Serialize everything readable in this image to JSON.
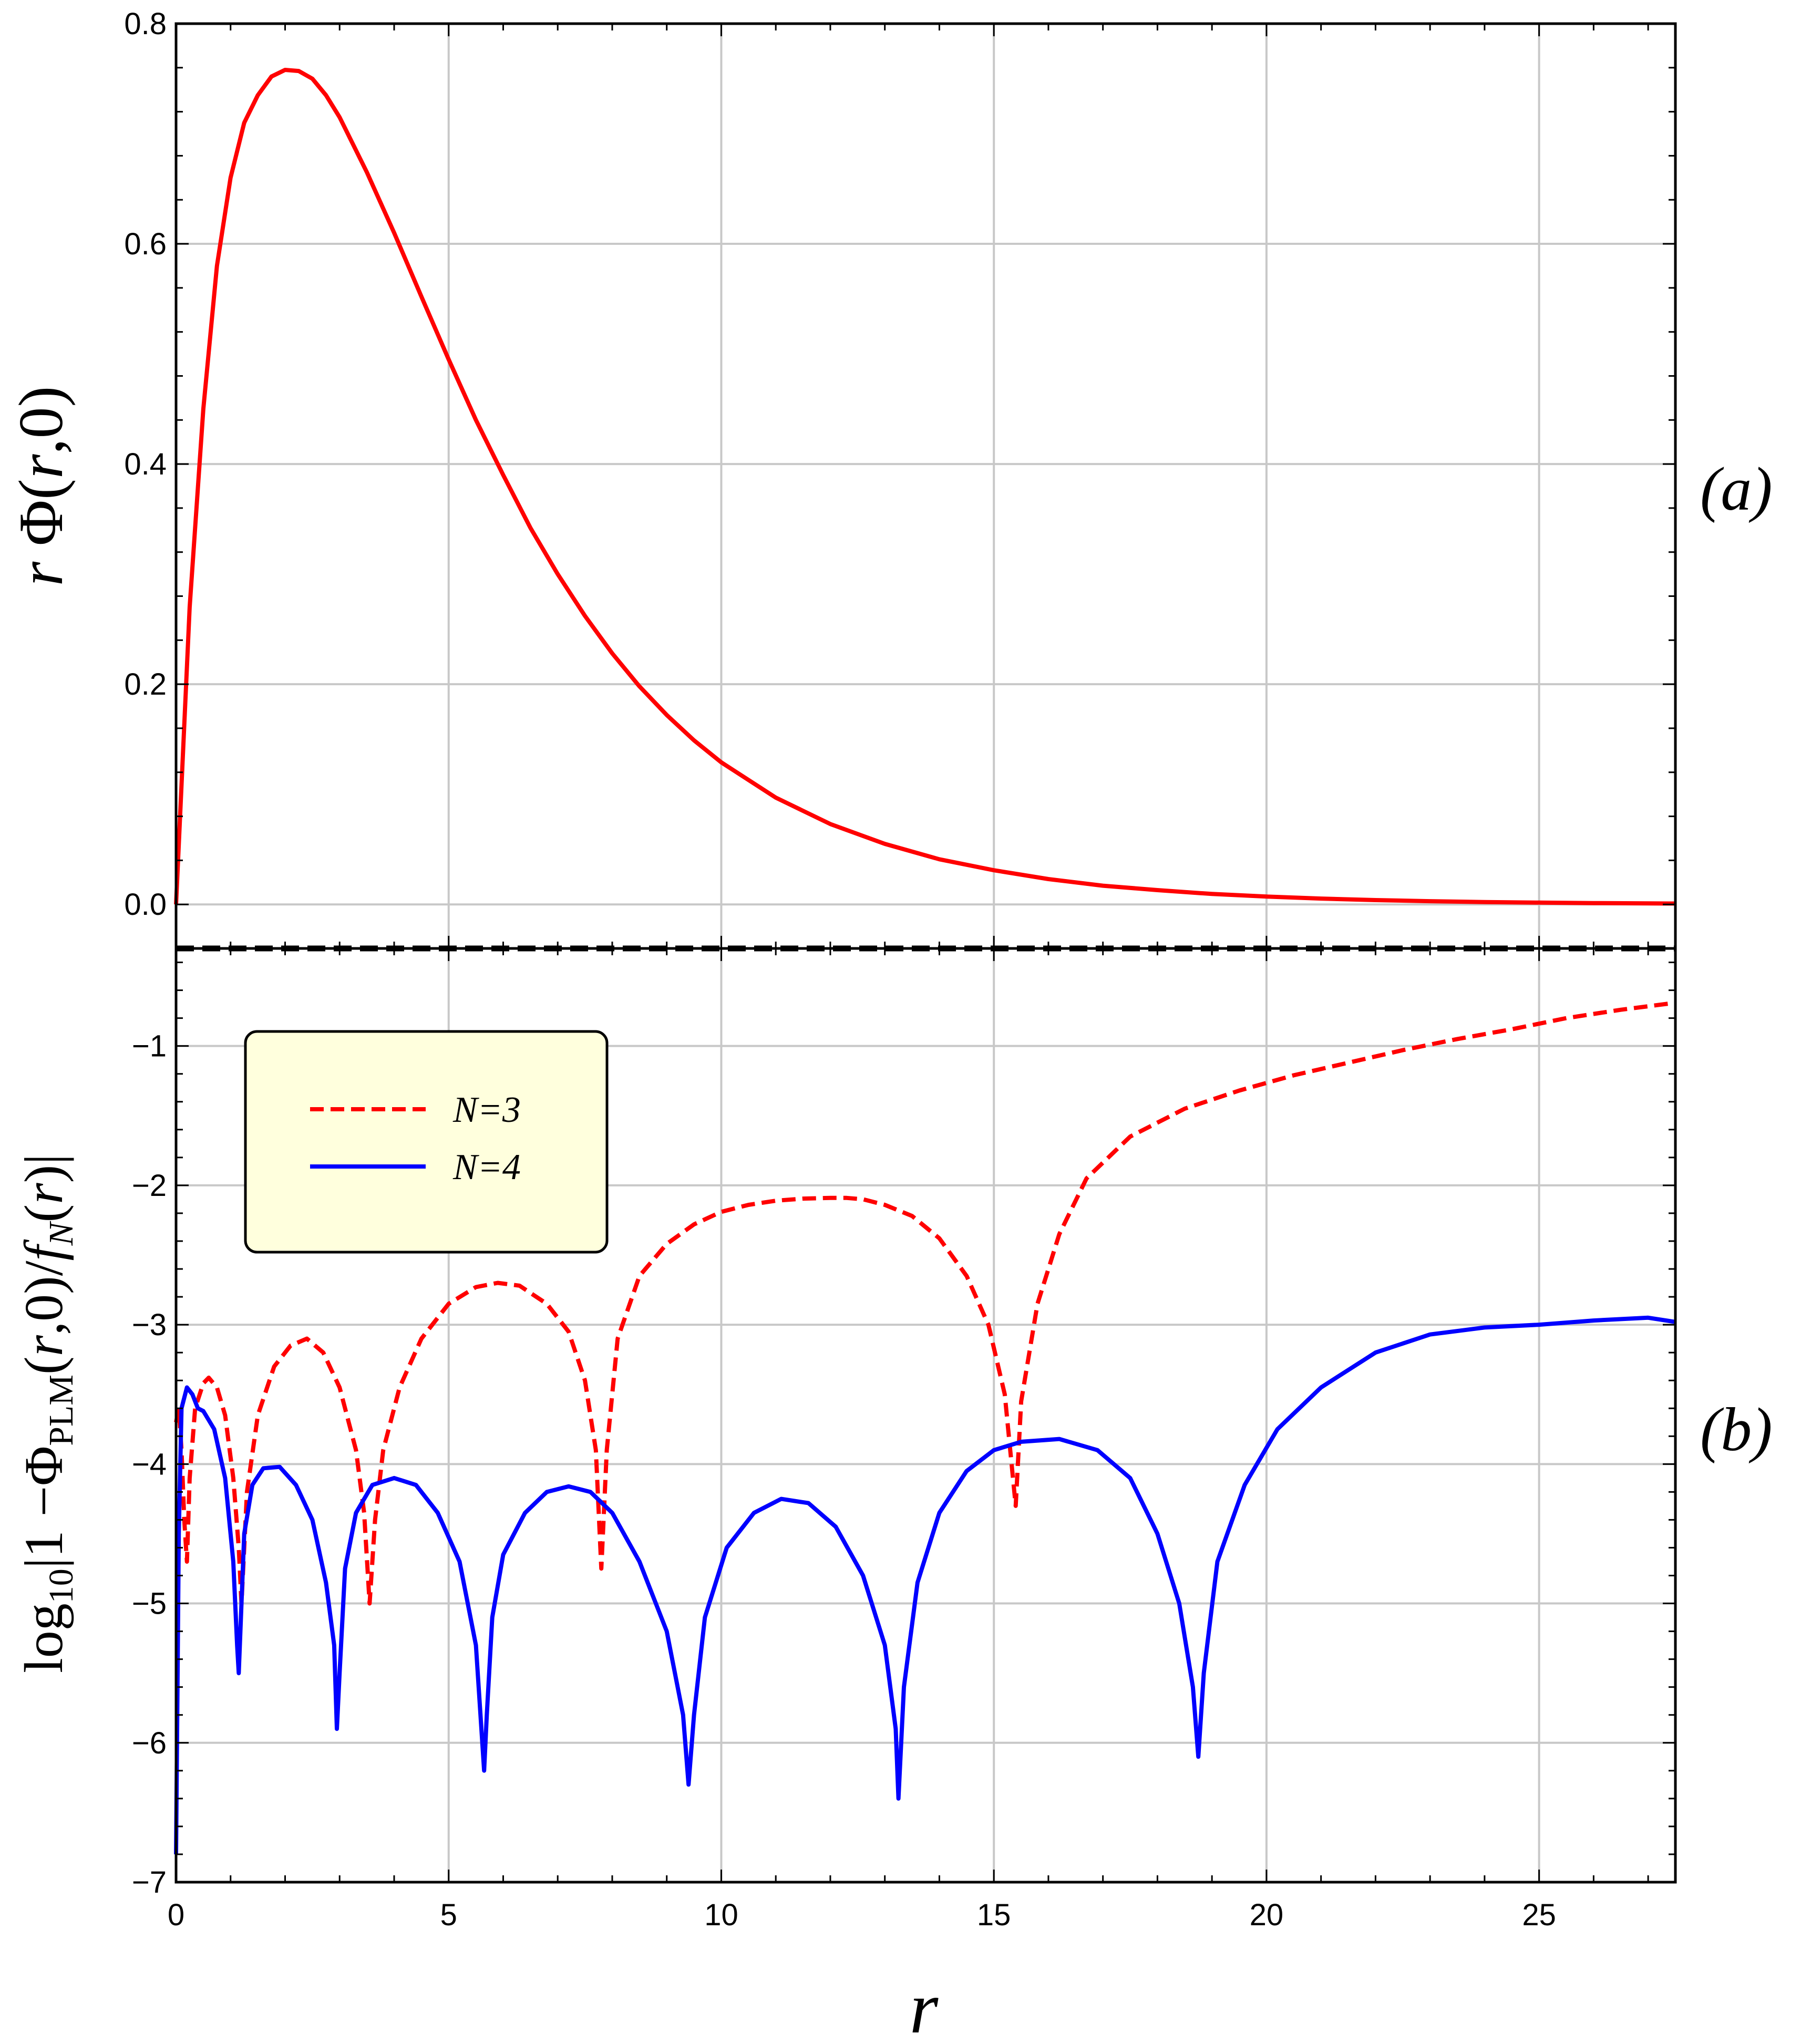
{
  "chart_data": [
    {
      "panel": "(a)",
      "type": "line",
      "ylabel": "r Φ(r,0)",
      "xlim": [
        0,
        27.5
      ],
      "ylim": [
        -0.04,
        0.8
      ],
      "y_ticks": [
        0.0,
        0.2,
        0.4,
        0.6,
        0.8
      ],
      "y_tick_labels": [
        "0.0",
        "0.2",
        "0.4",
        "0.6",
        "0.8"
      ],
      "grid": true,
      "series": [
        {
          "name": "r Φ(r,0)",
          "color": "#ff0000",
          "x": [
            0,
            0.25,
            0.5,
            0.75,
            1.0,
            1.25,
            1.5,
            1.75,
            2.0,
            2.25,
            2.5,
            2.75,
            3.0,
            3.5,
            4.0,
            4.5,
            5.0,
            5.5,
            6.0,
            6.5,
            7.0,
            7.5,
            8.0,
            8.5,
            9.0,
            9.5,
            10.0,
            11.0,
            12.0,
            13.0,
            14.0,
            15.0,
            16.0,
            17.0,
            18.0,
            19.0,
            20.0,
            21.0,
            22.0,
            23.0,
            24.0,
            25.0,
            26.0,
            27.0,
            27.5
          ],
          "values": [
            0.0,
            0.27,
            0.45,
            0.58,
            0.66,
            0.71,
            0.735,
            0.752,
            0.758,
            0.757,
            0.75,
            0.735,
            0.715,
            0.665,
            0.61,
            0.552,
            0.495,
            0.44,
            0.39,
            0.342,
            0.3,
            0.262,
            0.228,
            0.198,
            0.172,
            0.149,
            0.129,
            0.097,
            0.073,
            0.055,
            0.041,
            0.031,
            0.023,
            0.017,
            0.013,
            0.0095,
            0.0071,
            0.0053,
            0.0039,
            0.0029,
            0.0021,
            0.0016,
            0.0012,
            0.0009,
            0.0008
          ]
        }
      ]
    },
    {
      "panel": "(b)",
      "type": "line",
      "xlabel": "r",
      "ylabel": "log₁₀|1−Φ_PLM(r,0)/f_N(r)|",
      "xlim": [
        0,
        27.5
      ],
      "ylim": [
        -7,
        -0.3
      ],
      "x_ticks": [
        0,
        5,
        10,
        15,
        20,
        25
      ],
      "x_tick_labels": [
        "0",
        "5",
        "10",
        "15",
        "20",
        "25"
      ],
      "y_ticks": [
        -7,
        -6,
        -5,
        -4,
        -3,
        -2,
        -1
      ],
      "y_tick_labels": [
        "−7",
        "−6",
        "−5",
        "−4",
        "−3",
        "−2",
        "−1"
      ],
      "grid": true,
      "legend": {
        "placement": "top-left",
        "entries": [
          {
            "label": "N=3",
            "style": "dashed",
            "color": "#ff0000"
          },
          {
            "label": "N=4",
            "style": "solid",
            "color": "#0000ff"
          }
        ]
      },
      "series": [
        {
          "name": "N=3",
          "color": "#ff0000",
          "dash": "dashed",
          "x": [
            0.0,
            0.05,
            0.1,
            0.15,
            0.2,
            0.25,
            0.35,
            0.5,
            0.6,
            0.75,
            0.9,
            1.05,
            1.15,
            1.2,
            1.3,
            1.5,
            1.8,
            2.1,
            2.4,
            2.7,
            3.0,
            3.3,
            3.45,
            3.55,
            3.65,
            3.8,
            4.1,
            4.5,
            5.0,
            5.5,
            5.9,
            6.3,
            6.8,
            7.2,
            7.5,
            7.7,
            7.8,
            7.9,
            8.1,
            8.5,
            9.0,
            9.5,
            10.0,
            10.5,
            11.0,
            11.5,
            12.0,
            12.3,
            12.6,
            13.0,
            13.5,
            14.0,
            14.5,
            14.9,
            15.2,
            15.35,
            15.4,
            15.5,
            15.8,
            16.2,
            16.7,
            17.5,
            18.5,
            19.5,
            20.5,
            21.5,
            22.5,
            23.5,
            24.5,
            25.5,
            26.5,
            27.5
          ],
          "values": [
            -3.7,
            -3.6,
            -3.9,
            -4.4,
            -4.7,
            -4.1,
            -3.6,
            -3.42,
            -3.38,
            -3.45,
            -3.65,
            -4.1,
            -4.6,
            -5.0,
            -4.2,
            -3.65,
            -3.3,
            -3.15,
            -3.1,
            -3.2,
            -3.45,
            -3.9,
            -4.35,
            -5.0,
            -4.4,
            -3.9,
            -3.45,
            -3.1,
            -2.85,
            -2.73,
            -2.7,
            -2.72,
            -2.85,
            -3.05,
            -3.4,
            -3.9,
            -4.75,
            -3.9,
            -3.1,
            -2.65,
            -2.42,
            -2.28,
            -2.19,
            -2.14,
            -2.11,
            -2.095,
            -2.09,
            -2.09,
            -2.1,
            -2.14,
            -2.22,
            -2.38,
            -2.65,
            -3.0,
            -3.5,
            -4.1,
            -4.3,
            -3.55,
            -2.85,
            -2.35,
            -1.95,
            -1.65,
            -1.45,
            -1.32,
            -1.21,
            -1.12,
            -1.03,
            -0.95,
            -0.88,
            -0.8,
            -0.74,
            -0.69
          ]
        },
        {
          "name": "N=4",
          "color": "#0000ff",
          "dash": "solid",
          "x": [
            0.0,
            0.05,
            0.1,
            0.2,
            0.3,
            0.4,
            0.5,
            0.7,
            0.9,
            1.05,
            1.12,
            1.15,
            1.2,
            1.25,
            1.4,
            1.6,
            1.9,
            2.2,
            2.5,
            2.75,
            2.9,
            2.95,
            3.0,
            3.1,
            3.3,
            3.6,
            4.0,
            4.4,
            4.8,
            5.2,
            5.5,
            5.65,
            5.7,
            5.8,
            6.0,
            6.4,
            6.8,
            7.2,
            7.6,
            8.0,
            8.5,
            9.0,
            9.3,
            9.4,
            9.5,
            9.7,
            10.1,
            10.6,
            11.1,
            11.6,
            12.1,
            12.6,
            13.0,
            13.2,
            13.25,
            13.35,
            13.6,
            14.0,
            14.5,
            15.0,
            15.5,
            16.2,
            16.9,
            17.5,
            18.0,
            18.4,
            18.65,
            18.75,
            18.85,
            19.1,
            19.6,
            20.2,
            21.0,
            22.0,
            23.0,
            24.0,
            25.0,
            26.0,
            27.0,
            27.5
          ],
          "values": [
            -6.8,
            -4.5,
            -3.6,
            -3.45,
            -3.5,
            -3.6,
            -3.62,
            -3.75,
            -4.1,
            -4.7,
            -5.3,
            -5.5,
            -5.0,
            -4.5,
            -4.15,
            -4.03,
            -4.02,
            -4.15,
            -4.4,
            -4.85,
            -5.3,
            -5.9,
            -5.5,
            -4.75,
            -4.35,
            -4.15,
            -4.1,
            -4.15,
            -4.35,
            -4.7,
            -5.3,
            -6.2,
            -5.8,
            -5.1,
            -4.65,
            -4.35,
            -4.2,
            -4.16,
            -4.2,
            -4.35,
            -4.7,
            -5.2,
            -5.8,
            -6.3,
            -5.8,
            -5.1,
            -4.6,
            -4.35,
            -4.25,
            -4.28,
            -4.45,
            -4.8,
            -5.3,
            -5.9,
            -6.4,
            -5.6,
            -4.85,
            -4.35,
            -4.05,
            -3.9,
            -3.84,
            -3.82,
            -3.9,
            -4.1,
            -4.5,
            -5.0,
            -5.6,
            -6.1,
            -5.5,
            -4.7,
            -4.15,
            -3.75,
            -3.45,
            -3.2,
            -3.07,
            -3.02,
            -3.0,
            -2.97,
            -2.95,
            -2.98
          ]
        }
      ]
    }
  ],
  "x_axis_title": "r",
  "y_axis_title_a": {
    "prefix": "r ",
    "body": "Φ(",
    "var": "r",
    "suffix": ",0)"
  },
  "y_axis_title_b": {
    "part1": "log",
    "sub1": "10",
    "part2": "|1 −Φ",
    "sub2": "PLM",
    "part3": "(",
    "var1": "r",
    "part4": ",0)/",
    "var2": "f",
    "sub3": "N",
    "part5": "(",
    "var3": "r",
    "part6": ")|"
  },
  "panel_tags": {
    "a": "(a)",
    "b": "(b)"
  },
  "colors": {
    "red": "#ff0000",
    "blue": "#0000ff",
    "legend_bg": "#ffffdd",
    "grid": "#c8c8c8"
  }
}
